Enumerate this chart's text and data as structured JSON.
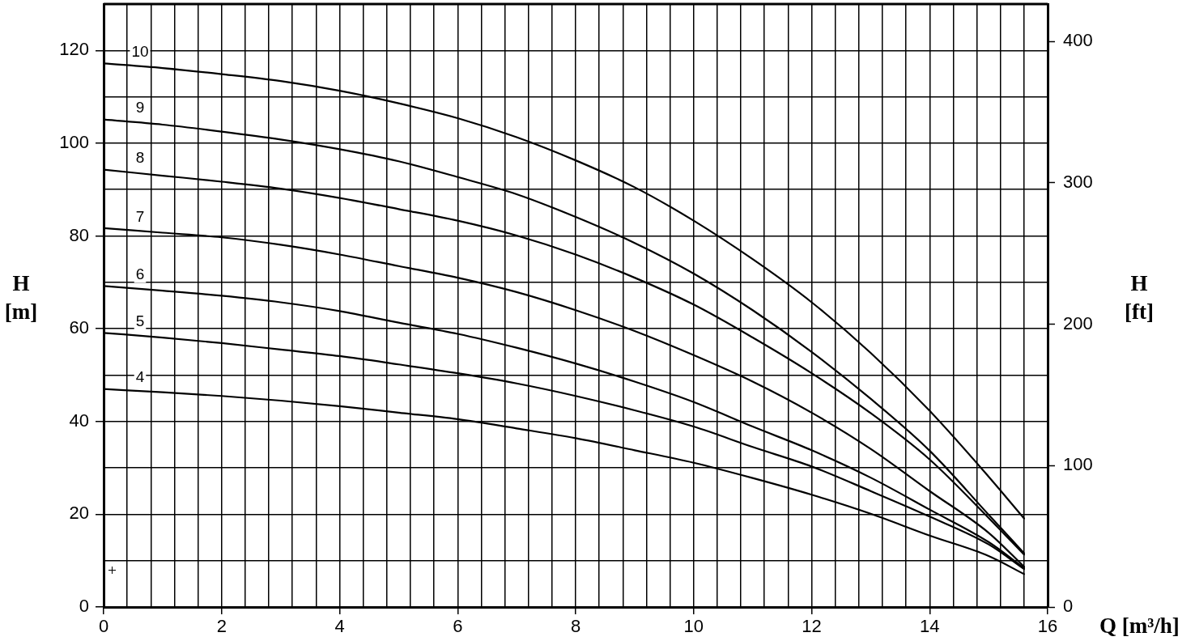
{
  "chart_data": {
    "type": "line",
    "xlabel": "Q [m³/h]",
    "ylabel": "H [m]",
    "y2label": "H [ft]",
    "x": [
      0,
      1,
      2,
      3,
      4,
      5,
      6,
      7,
      8,
      9,
      10,
      11,
      12,
      13,
      14,
      15,
      15.6
    ],
    "series": [
      {
        "name": "10",
        "color": "#000000",
        "values": [
          117.2,
          116.2,
          114.9,
          113.4,
          111.3,
          108.6,
          105.4,
          101.3,
          96.3,
          90.5,
          83.3,
          75.0,
          65.7,
          54.8,
          42.3,
          28.1,
          19.1
        ]
      },
      {
        "name": "9",
        "color": "#000000",
        "values": [
          105.1,
          104.0,
          102.5,
          100.8,
          98.7,
          96.1,
          92.7,
          89.0,
          84.1,
          78.5,
          71.9,
          64.0,
          55.0,
          44.9,
          33.7,
          19.9,
          11.6
        ]
      },
      {
        "name": "8",
        "color": "#000000",
        "values": [
          94.3,
          93.0,
          91.7,
          90.2,
          88.2,
          85.8,
          83.3,
          80.1,
          76.0,
          71.0,
          65.2,
          58.1,
          50.4,
          41.8,
          31.8,
          19.2,
          11.3
        ]
      },
      {
        "name": "7",
        "color": "#000000",
        "values": [
          81.7,
          80.7,
          79.7,
          78.1,
          76.0,
          73.5,
          71.0,
          67.9,
          64.0,
          59.5,
          54.3,
          48.6,
          41.9,
          34.1,
          25.0,
          16.0,
          8.7
        ]
      },
      {
        "name": "6",
        "color": "#000000",
        "values": [
          69.2,
          68.2,
          67.1,
          65.7,
          63.8,
          61.3,
          58.9,
          55.9,
          52.5,
          48.6,
          44.2,
          38.9,
          33.8,
          27.9,
          21.0,
          14.0,
          8.4
        ]
      },
      {
        "name": "5",
        "color": "#000000",
        "values": [
          59.1,
          58.1,
          56.9,
          55.5,
          54.1,
          52.3,
          50.4,
          48.2,
          45.5,
          42.4,
          38.9,
          34.5,
          30.3,
          25.0,
          19.5,
          13.5,
          8.2
        ]
      },
      {
        "name": "4",
        "color": "#000000",
        "values": [
          47.0,
          46.3,
          45.5,
          44.5,
          43.3,
          41.9,
          40.5,
          38.5,
          36.4,
          33.8,
          31.1,
          27.8,
          24.2,
          20.1,
          15.4,
          11.0,
          7.1
        ]
      }
    ],
    "xlim": [
      0,
      16
    ],
    "xticks": [
      0,
      {
        "value": 0.4,
        "label": null
      },
      {
        "value": 0.8,
        "label": null
      },
      {
        "value": 1.2,
        "label": null
      },
      {
        "value": 1.6,
        "label": null
      },
      2,
      {
        "value": 2.4,
        "label": null
      },
      {
        "value": 2.8,
        "label": null
      },
      {
        "value": 3.2,
        "label": null
      },
      {
        "value": 3.6,
        "label": null
      },
      4,
      {
        "value": 4.4,
        "label": null
      },
      {
        "value": 4.8,
        "label": null
      },
      {
        "value": 5.2,
        "label": null
      },
      {
        "value": 5.6,
        "label": null
      },
      6,
      {
        "value": 6.4,
        "label": null
      },
      {
        "value": 6.8,
        "label": null
      },
      {
        "value": 7.2,
        "label": null
      },
      {
        "value": 7.6,
        "label": null
      },
      8,
      {
        "value": 8.4,
        "label": null
      },
      {
        "value": 8.8,
        "label": null
      },
      {
        "value": 9.2,
        "label": null
      },
      {
        "value": 9.6,
        "label": null
      },
      10,
      {
        "value": 10.4,
        "label": null
      },
      {
        "value": 10.8,
        "label": null
      },
      {
        "value": 11.2,
        "label": null
      },
      {
        "value": 11.6,
        "label": null
      },
      12,
      {
        "value": 12.4,
        "label": null
      },
      {
        "value": 12.8,
        "label": null
      },
      {
        "value": 13.2,
        "label": null
      },
      {
        "value": 13.6,
        "label": null
      },
      14,
      {
        "value": 14.4,
        "label": null
      },
      {
        "value": 14.8,
        "label": null
      },
      {
        "value": 15.2,
        "label": null
      },
      {
        "value": 15.6,
        "label": null
      },
      16
    ],
    "ylim": [
      0,
      130
    ],
    "yticks": [
      0,
      {
        "value": 10,
        "label": null
      },
      20,
      {
        "value": 30,
        "label": null
      },
      40,
      {
        "value": 50,
        "label": null
      },
      60,
      {
        "value": 70,
        "label": null
      },
      80,
      {
        "value": 90,
        "label": null
      },
      100,
      {
        "value": 110,
        "label": null
      },
      120
    ],
    "y2lim": [
      0,
      426.5
    ],
    "y2ticks": [
      0,
      100,
      200,
      300,
      400
    ],
    "grid": true,
    "legend": false,
    "marker": "none",
    "line_style": "solid"
  }
}
